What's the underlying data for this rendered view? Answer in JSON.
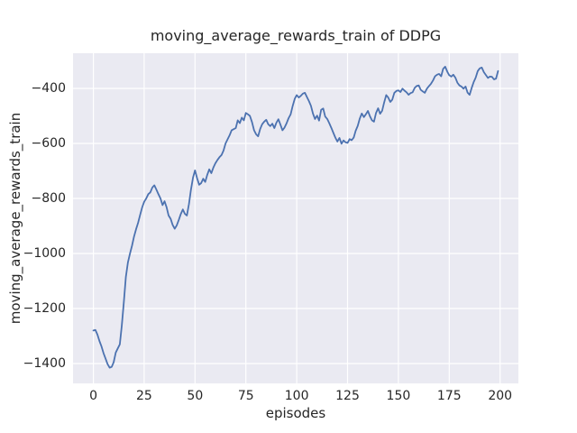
{
  "chart_data": {
    "type": "line",
    "title": "moving_average_rewards_train of DDPG",
    "xlabel": "episodes",
    "ylabel": "moving_average_rewards_train",
    "grid": true,
    "legend": false,
    "xlim": [
      -10,
      209
    ],
    "ylim": [
      -1472,
      -272
    ],
    "x_ticks": [
      0,
      25,
      50,
      75,
      100,
      125,
      150,
      175,
      200
    ],
    "x_tick_labels": [
      "0",
      "25",
      "50",
      "75",
      "100",
      "125",
      "150",
      "175",
      "200"
    ],
    "y_ticks": [
      -400,
      -600,
      -800,
      -1000,
      -1200,
      -1400
    ],
    "y_tick_labels": [
      "−400",
      "−600",
      "−800",
      "−1000",
      "−1200",
      "−1400"
    ],
    "x_start": 0,
    "x_step": 1,
    "series": [
      {
        "name": "moving_average_rewards_train",
        "color": "#4c72b0",
        "values": [
          -1280,
          -1278,
          -1295,
          -1318,
          -1338,
          -1362,
          -1382,
          -1402,
          -1415,
          -1412,
          -1395,
          -1360,
          -1345,
          -1330,
          -1262,
          -1175,
          -1085,
          -1032,
          -1000,
          -972,
          -938,
          -912,
          -888,
          -860,
          -832,
          -812,
          -800,
          -784,
          -778,
          -760,
          -752,
          -768,
          -784,
          -800,
          -824,
          -810,
          -832,
          -862,
          -874,
          -896,
          -910,
          -898,
          -878,
          -856,
          -840,
          -856,
          -862,
          -820,
          -768,
          -724,
          -698,
          -726,
          -750,
          -744,
          -728,
          -740,
          -714,
          -694,
          -708,
          -688,
          -672,
          -660,
          -650,
          -642,
          -626,
          -600,
          -585,
          -570,
          -552,
          -548,
          -544,
          -516,
          -526,
          -506,
          -516,
          -489,
          -494,
          -500,
          -522,
          -552,
          -566,
          -574,
          -548,
          -530,
          -521,
          -514,
          -530,
          -537,
          -528,
          -544,
          -524,
          -512,
          -532,
          -552,
          -542,
          -527,
          -508,
          -494,
          -464,
          -438,
          -424,
          -433,
          -427,
          -419,
          -416,
          -431,
          -446,
          -463,
          -492,
          -511,
          -499,
          -517,
          -478,
          -473,
          -502,
          -511,
          -526,
          -543,
          -561,
          -579,
          -593,
          -580,
          -601,
          -589,
          -596,
          -598,
          -584,
          -588,
          -579,
          -554,
          -536,
          -509,
          -491,
          -504,
          -494,
          -482,
          -501,
          -516,
          -521,
          -489,
          -472,
          -492,
          -481,
          -451,
          -424,
          -433,
          -449,
          -441,
          -416,
          -409,
          -407,
          -413,
          -401,
          -408,
          -414,
          -423,
          -417,
          -414,
          -398,
          -391,
          -389,
          -405,
          -411,
          -416,
          -401,
          -392,
          -383,
          -371,
          -356,
          -350,
          -347,
          -356,
          -329,
          -321,
          -339,
          -352,
          -357,
          -350,
          -361,
          -379,
          -389,
          -393,
          -401,
          -393,
          -415,
          -423,
          -399,
          -377,
          -361,
          -337,
          -327,
          -324,
          -341,
          -351,
          -362,
          -357,
          -358,
          -367,
          -364,
          -337
        ]
      }
    ],
    "colors": {
      "figure_background": "#ffffff",
      "axes_background": "#eaeaf2",
      "grid": "#ffffff",
      "line": "#4c72b0",
      "text": "#262626"
    }
  }
}
